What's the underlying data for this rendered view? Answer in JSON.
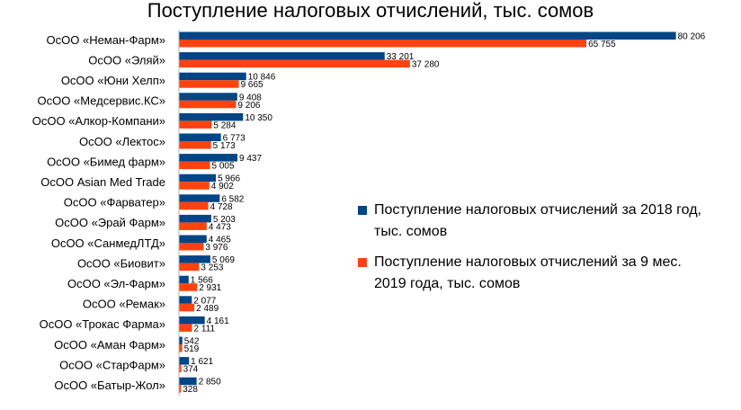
{
  "chart_data": {
    "type": "bar",
    "orientation": "horizontal",
    "title": "Поступление налоговых отчислений, тыс. сомов",
    "categories": [
      "ОсОО «Неман-Фарм»",
      "ОсОО «Эляй»",
      "ОсОО «Юни Хелп»",
      "ОсОО «Медсервис.КС»",
      "ОсОО «Алкор-Компани»",
      "ОсОО «Лектос»",
      "ОсОО «Бимед фарм»",
      "ОсОО Asian Med Trade",
      "ОсОО «Фарватер»",
      "ОсОО «Эрай Фарм»",
      "ОсОО «СанмедЛТД»",
      "ОсОО «Биовит»",
      "ОсОО «Эл-Фарм»",
      "ОсОО «Ремак»",
      "ОсОО «Трокас Фарма»",
      "ОсОО «Аман Фарм»",
      "ОсОО «СтарФарм»",
      "ОсОО «Батыр-Жол»"
    ],
    "series": [
      {
        "name": "Поступление налоговых отчислений за 2018 год, тыс. сомов",
        "color": "#004586",
        "values": [
          80206,
          33201,
          10846,
          9408,
          10350,
          6773,
          9437,
          5966,
          6582,
          5203,
          4465,
          5069,
          1566,
          2077,
          4161,
          542,
          1621,
          2850
        ],
        "labels": [
          "80 206",
          "33 201",
          "10 846",
          "9 408",
          "10 350",
          "6 773",
          "9 437",
          "5 966",
          "6 582",
          "5 203",
          "4 465",
          "5 069",
          "1 566",
          "2 077",
          "4 161",
          "542",
          "1 621",
          "2 850"
        ]
      },
      {
        "name": "Поступление налоговых отчислений за 9 мес. 2019 года, тыс. сомов",
        "color": "#ff420e",
        "values": [
          65755,
          37280,
          9665,
          9206,
          5284,
          5173,
          5005,
          4902,
          4728,
          4473,
          3976,
          3253,
          2931,
          2489,
          2111,
          519,
          374,
          328
        ],
        "labels": [
          "65 755",
          "37 280",
          "9 665",
          "9 206",
          "5 284",
          "5 173",
          "5 005",
          "4 902",
          "4 728",
          "4 473",
          "3 976",
          "3 253",
          "2 931",
          "2 489",
          "2 111",
          "519",
          "374",
          "328"
        ]
      }
    ],
    "xlim": [
      0,
      82000
    ],
    "grid": false,
    "legend_position": "right"
  }
}
